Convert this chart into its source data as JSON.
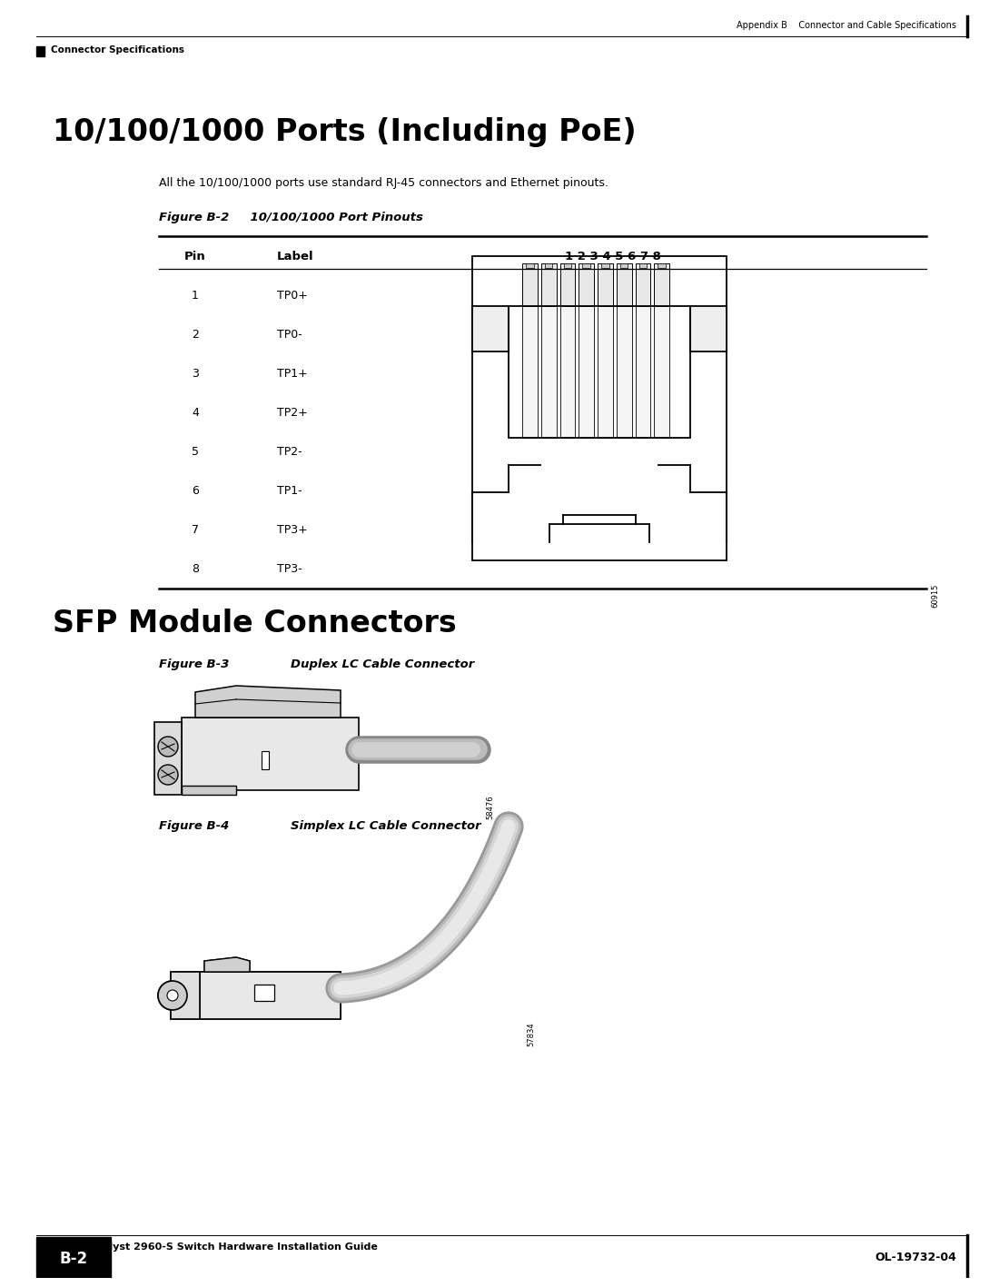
{
  "bg_color": "#ffffff",
  "page_title_top": "Appendix B    Connector and Cable Specifications",
  "page_section_top": "Connector Specifications",
  "section1_title": "10/100/1000 Ports (Including PoE)",
  "section1_body": "All the 10/100/1000 ports use standard RJ-45 connectors and Ethernet pinouts.",
  "fig_b2_label": "Figure B-2",
  "fig_b2_title": "10/100/1000 Port Pinouts",
  "table_headers": [
    "Pin",
    "Label",
    "1 2 3 4 5 6 7 8"
  ],
  "table_pins": [
    1,
    2,
    3,
    4,
    5,
    6,
    7,
    8
  ],
  "table_labels": [
    "TP0+",
    "TP0-",
    "TP1+",
    "TP2+",
    "TP2-",
    "TP1-",
    "TP3+",
    "TP3-"
  ],
  "fig_b2_code": "60915",
  "section2_title": "SFP Module Connectors",
  "fig_b3_label": "Figure B-3",
  "fig_b3_title": "Duplex LC Cable Connector",
  "fig_b3_code": "58476",
  "fig_b4_label": "Figure B-4",
  "fig_b4_title": "Simplex LC Cable Connector",
  "fig_b4_code": "57834",
  "footer_left": "Catalyst 2960-S Switch Hardware Installation Guide",
  "footer_page": "B-2",
  "footer_right": "OL-19732-04"
}
